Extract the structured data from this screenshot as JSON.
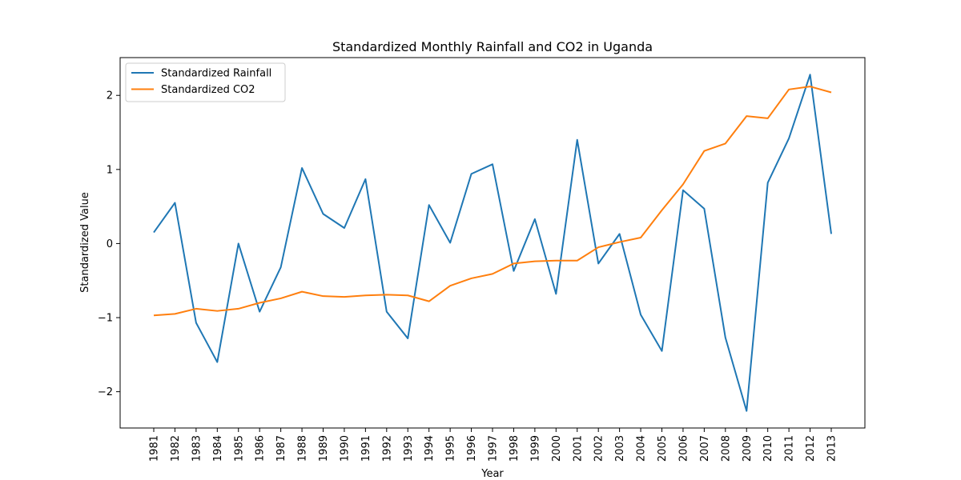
{
  "chart_data": {
    "type": "line",
    "title": "Standardized Monthly Rainfall and CO2 in Uganda",
    "xlabel": "Year",
    "ylabel": "Standardized Value",
    "x": [
      "1981",
      "1982",
      "1983",
      "1984",
      "1985",
      "1986",
      "1987",
      "1988",
      "1989",
      "1990",
      "1991",
      "1992",
      "1993",
      "1994",
      "1995",
      "1996",
      "1997",
      "1998",
      "1999",
      "2000",
      "2001",
      "2002",
      "2003",
      "2004",
      "2005",
      "2006",
      "2007",
      "2008",
      "2009",
      "2010",
      "2011",
      "2012",
      "2013"
    ],
    "series": [
      {
        "name": "Standardized Rainfall",
        "color": "#1f77b4",
        "values": [
          0.15,
          0.55,
          -1.07,
          -1.6,
          0.0,
          -0.92,
          -0.32,
          1.02,
          0.4,
          0.21,
          0.87,
          -0.92,
          -1.28,
          0.52,
          0.01,
          0.94,
          1.07,
          -0.37,
          0.33,
          -0.68,
          1.4,
          -0.27,
          0.13,
          -0.96,
          -1.45,
          0.72,
          0.47,
          -1.27,
          -2.26,
          0.82,
          1.42,
          2.28,
          0.13
        ]
      },
      {
        "name": "Standardized CO2",
        "color": "#ff7f0e",
        "values": [
          -0.97,
          -0.95,
          -0.88,
          -0.91,
          -0.88,
          -0.8,
          -0.74,
          -0.65,
          -0.71,
          -0.72,
          -0.7,
          -0.69,
          -0.7,
          -0.78,
          -0.57,
          -0.47,
          -0.41,
          -0.27,
          -0.24,
          -0.23,
          -0.23,
          -0.05,
          0.02,
          0.08,
          0.45,
          0.8,
          1.25,
          1.35,
          1.72,
          1.69,
          2.08,
          2.12,
          2.04
        ]
      }
    ],
    "ylim": [
      -2.49,
      2.51
    ],
    "yticks": [
      -2,
      -1,
      0,
      1,
      2
    ],
    "ytick_labels": [
      "−2",
      "−1",
      "0",
      "1",
      "2"
    ],
    "grid": false,
    "legend": "upper left"
  }
}
